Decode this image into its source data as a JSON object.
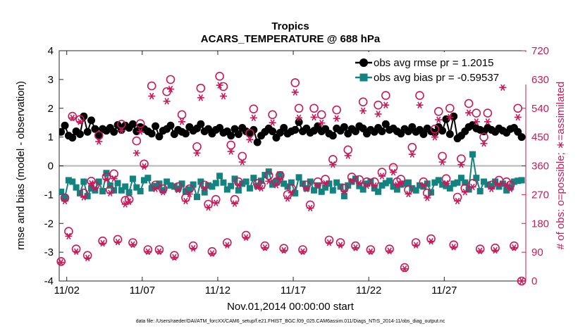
{
  "colors": {
    "rmse": "#000000",
    "bias": "#12837f",
    "obs": "#c8195a",
    "zero_line": "#b4b4b4",
    "axis": "#262626"
  },
  "chart_data": {
    "type": "line",
    "title": "Tropics",
    "subtitle": "ACARS_TEMPERATURE @ 688 hPa",
    "xlabel": "Nov.01,2014 00:00:00 start",
    "ylabel_left": "rmse and bias (model - observation)",
    "ylabel_right": "# of obs: o=possible; ∗=assimilated",
    "footer": "data file: /Users/raeder/DAI/ATM_forcXX/CAM6_setup/f.e21.FHIST_BGC.f09_025.CAM6assim.011/Diags_NTrS_2014-11/obs_diag_output.nc",
    "xlim": [
      1.5,
      32.4
    ],
    "ylim_left": [
      -4,
      4
    ],
    "ylim_right": [
      0,
      720
    ],
    "x_ticks": [
      2,
      7,
      12,
      17,
      22,
      27
    ],
    "x_tick_labels": [
      "11/02",
      "11/07",
      "11/12",
      "11/17",
      "11/22",
      "11/27"
    ],
    "y_left_ticks": [
      -4,
      -3,
      -2,
      -1,
      0,
      1,
      2,
      3,
      4
    ],
    "y_left_tick_labels": [
      "-4",
      "-3",
      "-2",
      "-1",
      "0",
      "1",
      "2",
      "3",
      "4"
    ],
    "y_right_ticks": [
      0,
      90,
      180,
      270,
      360,
      450,
      540,
      630,
      720
    ],
    "y_right_tick_labels": [
      "0",
      "90",
      "180",
      "270",
      "360",
      "450",
      "540",
      "630",
      "720"
    ],
    "legend": {
      "location": "top-right",
      "entries": [
        "obs avg rmse pr = 1.2015",
        "obs avg bias pr = -0.59537"
      ]
    },
    "x": [
      1.625,
      1.875,
      2.125,
      2.375,
      2.625,
      2.875,
      3.125,
      3.375,
      3.625,
      3.875,
      4.125,
      4.375,
      4.625,
      4.875,
      5.125,
      5.375,
      5.625,
      5.875,
      6.125,
      6.375,
      6.625,
      6.875,
      7.125,
      7.375,
      7.625,
      7.875,
      8.125,
      8.375,
      8.625,
      8.875,
      9.125,
      9.375,
      9.625,
      9.875,
      10.125,
      10.375,
      10.625,
      10.875,
      11.125,
      11.375,
      11.625,
      11.875,
      12.125,
      12.375,
      12.625,
      12.875,
      13.125,
      13.375,
      13.625,
      13.875,
      14.125,
      14.375,
      14.625,
      14.875,
      15.125,
      15.375,
      15.625,
      15.875,
      16.125,
      16.375,
      16.625,
      16.875,
      17.125,
      17.375,
      17.625,
      17.875,
      18.125,
      18.375,
      18.625,
      18.875,
      19.125,
      19.375,
      19.625,
      19.875,
      20.125,
      20.375,
      20.625,
      20.875,
      21.125,
      21.375,
      21.625,
      21.875,
      22.125,
      22.375,
      22.625,
      22.875,
      23.125,
      23.375,
      23.625,
      23.875,
      24.125,
      24.375,
      24.625,
      24.875,
      25.125,
      25.375,
      25.625,
      25.875,
      26.125,
      26.375,
      26.625,
      26.875,
      27.125,
      27.375,
      27.625,
      27.875,
      28.125,
      28.375,
      28.625,
      28.875,
      29.125,
      29.375,
      29.625,
      29.875,
      30.125,
      30.375,
      30.625,
      30.875,
      31.125,
      31.375,
      31.625,
      31.875,
      32.125
    ],
    "series": [
      {
        "name": "obs avg rmse pr = 1.2015",
        "marker": "filled-circle",
        "values": [
          1.18,
          1.4,
          1.05,
          0.98,
          1.2,
          1.1,
          1.72,
          1.18,
          1.58,
          1.28,
          1.05,
          1.28,
          1.22,
          1.32,
          1.18,
          1.42,
          1.25,
          1.4,
          1.32,
          1.45,
          1.2,
          1.35,
          1.28,
          1.2,
          1.12,
          1.38,
          1.02,
          1.22,
          1.28,
          1.4,
          1.1,
          1.25,
          1.18,
          1.12,
          1.35,
          1.22,
          1.3,
          1.45,
          1.2,
          1.28,
          1.12,
          1.25,
          1.32,
          1.15,
          1.2,
          1.05,
          1.28,
          1.1,
          1.32,
          1.2,
          1.12,
          1.25,
          0.82,
          1.05,
          1.18,
          1.3,
          1.2,
          0.98,
          1.15,
          1.32,
          1.12,
          1.2,
          1.25,
          1.52,
          1.2,
          1.3,
          1.15,
          1.22,
          1.38,
          1.2,
          1.28,
          1.12,
          1.05,
          1.3,
          1.22,
          1.35,
          1.12,
          1.28,
          1.2,
          1.38,
          1.3,
          1.12,
          1.25,
          1.18,
          1.32,
          1.2,
          1.45,
          1.25,
          1.3,
          1.2,
          1.12,
          1.28,
          1.2,
          1.35,
          1.18,
          1.25,
          1.1,
          1.3,
          1.2,
          1.15,
          1.35,
          1.22,
          1.62,
          1.1,
          1.72,
          0.95,
          1.05,
          1.2,
          1.35,
          1.42,
          1.3,
          1.25,
          1.2,
          1.32,
          1.25,
          1.18,
          1.3,
          1.22,
          1.15,
          1.28,
          1.32,
          1.18,
          1.0
        ]
      },
      {
        "name": "obs avg bias pr = -0.59537",
        "marker": "filled-square",
        "values": [
          -0.9,
          -1.1,
          -0.5,
          -0.55,
          -0.75,
          -0.95,
          -0.55,
          -1.05,
          -0.78,
          -0.85,
          -0.55,
          -0.88,
          -0.25,
          -0.68,
          -0.85,
          -0.6,
          -0.85,
          -0.72,
          -0.92,
          -0.45,
          -0.75,
          -0.88,
          -0.5,
          -0.42,
          -0.78,
          -0.7,
          -0.62,
          -0.85,
          -0.55,
          -0.68,
          -0.72,
          -0.8,
          -0.62,
          -0.9,
          -0.82,
          -0.65,
          -1.08,
          -0.55,
          -0.92,
          -0.68,
          -0.72,
          -0.6,
          -0.35,
          -0.58,
          -0.82,
          -0.7,
          -0.45,
          -0.85,
          -0.62,
          -0.55,
          -0.78,
          -0.42,
          -0.7,
          -0.52,
          -0.32,
          -0.2,
          -0.65,
          -0.55,
          -0.3,
          -0.62,
          -0.72,
          -0.58,
          -0.95,
          -0.4,
          -0.62,
          -0.78,
          -0.55,
          -0.85,
          -0.68,
          -0.9,
          -0.75,
          -0.62,
          -0.85,
          -0.58,
          -0.72,
          -1.05,
          -0.68,
          -0.55,
          -0.45,
          -0.7,
          -0.82,
          -0.62,
          -0.55,
          -0.78,
          -0.9,
          -0.68,
          -0.6,
          -0.52,
          -0.72,
          -0.82,
          -0.65,
          -0.62,
          -0.58,
          -0.78,
          -0.85,
          -0.68,
          -0.72,
          -0.62,
          -0.92,
          -0.58,
          -0.5,
          -0.65,
          -0.7,
          -0.78,
          -0.62,
          -0.58,
          -0.42,
          -0.58,
          -0.82,
          0.4,
          -0.42,
          -0.88,
          -0.55,
          -0.65,
          -0.7,
          -0.55,
          -0.72,
          -0.62,
          -0.85,
          -0.75,
          -0.55,
          -0.52,
          -0.5
        ]
      }
    ],
    "obs_series": [
      {
        "name": "possible",
        "marker": "open-circle",
        "x": [
          1.625,
          1.875,
          2.125,
          2.375,
          2.625,
          2.875,
          3.125,
          3.375,
          3.625,
          3.875,
          4.125,
          4.375,
          4.625,
          4.875,
          5.125,
          5.375,
          5.625,
          5.875,
          6.125,
          6.375,
          6.625,
          6.875,
          7.125,
          7.375,
          7.625,
          7.875,
          8.125,
          8.375,
          8.625,
          8.875,
          9.125,
          9.375,
          9.625,
          9.875,
          10.125,
          10.375,
          10.625,
          10.875,
          11.125,
          11.375,
          11.625,
          11.875,
          12.125,
          12.375,
          12.625,
          12.875,
          13.125,
          13.375,
          13.625,
          13.875,
          14.125,
          14.375,
          14.625,
          14.875,
          15.125,
          15.375,
          15.625,
          15.875,
          16.125,
          16.375,
          16.625,
          16.875,
          17.125,
          17.375,
          17.625,
          17.875,
          18.125,
          18.375,
          18.625,
          18.875,
          19.125,
          19.375,
          19.625,
          19.875,
          20.125,
          20.375,
          20.625,
          20.875,
          21.125,
          21.375,
          21.625,
          21.875,
          22.125,
          22.375,
          22.625,
          22.875,
          23.125,
          23.375,
          23.625,
          23.875,
          24.125,
          24.375,
          24.625,
          24.875,
          25.125,
          25.375,
          25.625,
          25.875,
          26.125,
          26.375,
          26.625,
          26.875,
          27.125,
          27.375,
          27.625,
          27.875,
          28.125,
          28.375,
          28.625,
          28.875,
          29.125,
          29.375,
          29.625,
          29.875,
          30.125,
          30.375,
          30.625,
          30.875,
          31.125,
          31.375,
          31.625,
          31.875,
          32.125
        ],
        "values": [
          61,
          260,
          155,
          515,
          100,
          505,
          275,
          80,
          312,
          298,
          455,
          125,
          326,
          285,
          335,
          130,
          490,
          252,
          255,
          120,
          438,
          492,
          366,
          98,
          610,
          300,
          98,
          288,
          592,
          630,
          80,
          295,
          520,
          260,
          288,
          110,
          420,
          603,
          300,
          240,
          92,
          255,
          640,
          608,
          120,
          425,
          255,
          310,
          390,
          143,
          462,
          538,
          305,
          300,
          110,
          330,
          520,
          310,
          330,
          102,
          270,
          290,
          620,
          540,
          98,
          300,
          238,
          540,
          310,
          520,
          318,
          128,
          380,
          535,
          120,
          290,
          410,
          325,
          110,
          317,
          560,
          310,
          98,
          310,
          550,
          340,
          580,
          100,
          355,
          310,
          318,
          42,
          285,
          418,
          120,
          580,
          310,
          275,
          132,
          475,
          530,
          390,
          320,
          540,
          113,
          262,
          382,
          290,
          555,
          305,
          525,
          100,
          450,
          525,
          300,
          103,
          315,
          650,
          310,
          300,
          110,
          540,
          0
        ]
      },
      {
        "name": "assimilated",
        "marker": "asterisk",
        "x": [
          1.625,
          1.875,
          2.125,
          2.375,
          2.625,
          2.875,
          3.125,
          3.375,
          3.625,
          3.875,
          4.125,
          4.375,
          4.625,
          4.875,
          5.125,
          5.375,
          5.625,
          5.875,
          6.125,
          6.375,
          6.625,
          6.875,
          7.125,
          7.375,
          7.625,
          7.875,
          8.125,
          8.375,
          8.625,
          8.875,
          9.125,
          9.375,
          9.625,
          9.875,
          10.125,
          10.375,
          10.625,
          10.875,
          11.125,
          11.375,
          11.625,
          11.875,
          12.125,
          12.375,
          12.625,
          12.875,
          13.125,
          13.375,
          13.625,
          13.875,
          14.125,
          14.375,
          14.625,
          14.875,
          15.125,
          15.375,
          15.625,
          15.875,
          16.125,
          16.375,
          16.625,
          16.875,
          17.125,
          17.375,
          17.625,
          17.875,
          18.125,
          18.375,
          18.625,
          18.875,
          19.125,
          19.375,
          19.625,
          19.875,
          20.125,
          20.375,
          20.625,
          20.875,
          21.125,
          21.375,
          21.625,
          21.875,
          22.125,
          22.375,
          22.625,
          22.875,
          23.125,
          23.375,
          23.625,
          23.875,
          24.125,
          24.375,
          24.625,
          24.875,
          25.125,
          25.375,
          25.625,
          25.875,
          26.125,
          26.375,
          26.625,
          26.875,
          27.125,
          27.375,
          27.625,
          27.875,
          28.125,
          28.375,
          28.625,
          28.875,
          29.125,
          29.375,
          29.625,
          29.875,
          30.125,
          30.375,
          30.625,
          30.875,
          31.125,
          31.375,
          31.625,
          31.875,
          32.125
        ],
        "values": [
          58,
          250,
          140,
          510,
          92,
          498,
          262,
          72,
          305,
          290,
          436,
          118,
          318,
          275,
          320,
          122,
          470,
          240,
          248,
          114,
          400,
          467,
          358,
          92,
          578,
          288,
          92,
          278,
          562,
          600,
          74,
          285,
          498,
          250,
          272,
          102,
          400,
          573,
          290,
          230,
          86,
          244,
          612,
          578,
          112,
          405,
          242,
          300,
          372,
          136,
          442,
          510,
          294,
          290,
          104,
          312,
          495,
          300,
          318,
          96,
          258,
          276,
          590,
          510,
          92,
          288,
          228,
          512,
          298,
          494,
          305,
          120,
          364,
          508,
          112,
          280,
          392,
          312,
          104,
          306,
          532,
          298,
          92,
          298,
          522,
          328,
          550,
          94,
          340,
          300,
          304,
          38,
          272,
          396,
          112,
          550,
          298,
          260,
          124,
          450,
          504,
          372,
          305,
          512,
          106,
          250,
          364,
          278,
          526,
          294,
          498,
          94,
          430,
          498,
          288,
          96,
          302,
          605,
          298,
          288,
          104,
          512,
          0
        ]
      }
    ]
  }
}
